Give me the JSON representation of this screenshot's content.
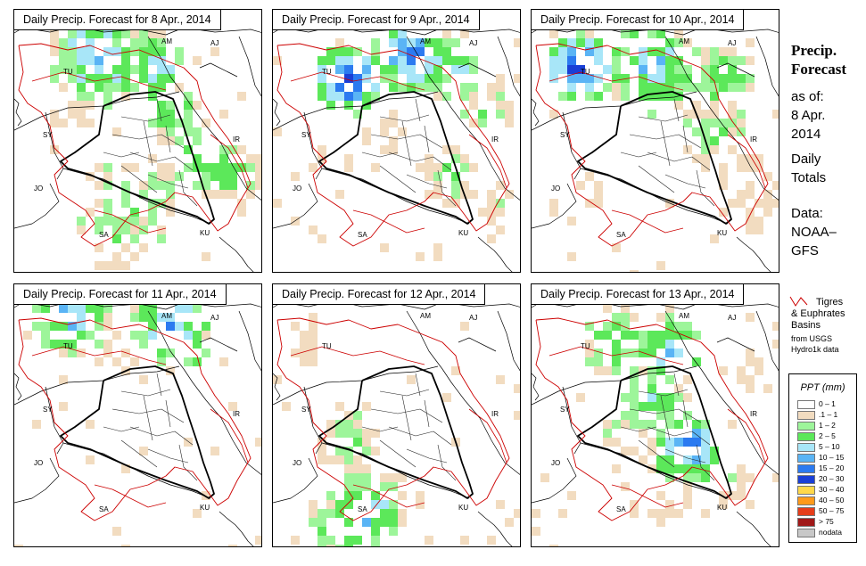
{
  "panels": [
    {
      "title": "Daily Precip. Forecast for  8 Apr., 2014"
    },
    {
      "title": "Daily Precip. Forecast for  9 Apr., 2014"
    },
    {
      "title": "Daily Precip. Forecast for  10 Apr., 2014"
    },
    {
      "title": "Daily Precip. Forecast for  11 Apr., 2014"
    },
    {
      "title": "Daily Precip. Forecast for  12 Apr., 2014"
    },
    {
      "title": "Daily Precip. Forecast for  13 Apr., 2014"
    }
  ],
  "map_labels": {
    "am": "AM",
    "aj": "AJ",
    "tu": "TU",
    "sy": "SY",
    "ir": "IR",
    "jo": "JO",
    "sa": "SA",
    "ku": "KU"
  },
  "side": {
    "heading_1": "Precip.",
    "heading_2": "Forecast",
    "as_of": "as of:",
    "date_1": "8 Apr.",
    "date_2": "2014",
    "daily_1": "Daily",
    "daily_2": "Totals",
    "data_1": "Data:",
    "data_2": "NOAA–",
    "data_3": "GFS"
  },
  "basin_legend": {
    "line_1": "Tigres",
    "line_2": "& Euphrates",
    "line_3": "Basins",
    "line_4": "from USGS",
    "line_5": "Hydro1k data",
    "line_color": "#cc0000"
  },
  "legend": {
    "title": "PPT (mm)",
    "items": [
      {
        "label": "0 – 1",
        "color": "#ffffff"
      },
      {
        "label": ".1 – 1",
        "color": "#f2dcc0"
      },
      {
        "label": "1 – 2",
        "color": "#9df59a"
      },
      {
        "label": "2 – 5",
        "color": "#5ce85a"
      },
      {
        "label": "5 – 10",
        "color": "#a8e6f8"
      },
      {
        "label": "10 – 15",
        "color": "#5ab4f5"
      },
      {
        "label": "15 – 20",
        "color": "#2b7af0"
      },
      {
        "label": "20 – 30",
        "color": "#1a3fd6"
      },
      {
        "label": "30 – 40",
        "color": "#ffd84a"
      },
      {
        "label": "40 – 50",
        "color": "#ff9a1a"
      },
      {
        "label": "50 – 75",
        "color": "#e63d1a"
      },
      {
        "label": "> 75",
        "color": "#a01818"
      },
      {
        "label": "nodata",
        "color": "#c8c8c8"
      }
    ]
  },
  "colors": {
    "basin": "#cc0000",
    "border": "#000000",
    "admin": "#222222"
  }
}
